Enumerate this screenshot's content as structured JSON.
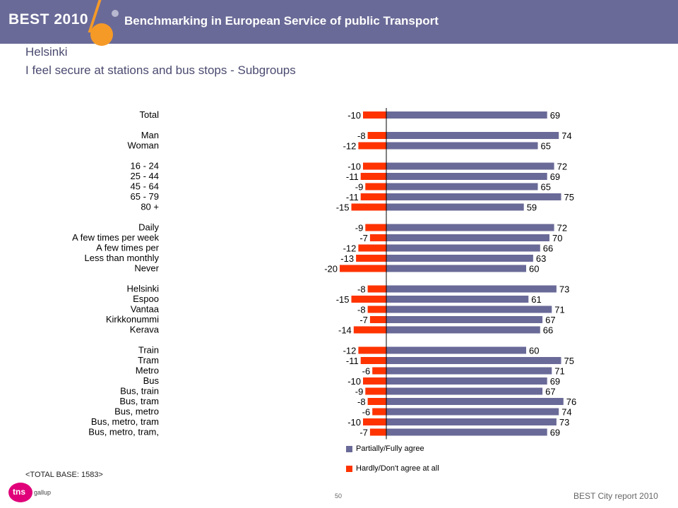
{
  "header": {
    "brand": "BEST 2010",
    "title": "Benchmarking in European Service of public Transport"
  },
  "city": "Helsinki",
  "subtitle": "I feel secure at stations and bus stops - Subgroups",
  "base_note": "<TOTAL BASE: 1583>",
  "footer": {
    "logo": "tns",
    "logo_sub": "gallup",
    "page_number": "50",
    "report": "BEST City report 2010"
  },
  "colors": {
    "agree": "#6a6a98",
    "disagree": "#ff3300"
  },
  "chart_data": {
    "type": "bar",
    "orientation": "horizontal-diverging",
    "series": [
      {
        "name": "Partially/Fully agree",
        "color": "#6a6a98"
      },
      {
        "name": "Hardly/Don't agree at all",
        "color": "#ff3300"
      }
    ],
    "groups": [
      {
        "rows": [
          {
            "label": "Total",
            "agree": 69,
            "disagree": -10
          }
        ]
      },
      {
        "rows": [
          {
            "label": "Man",
            "agree": 74,
            "disagree": -8
          },
          {
            "label": "Woman",
            "agree": 65,
            "disagree": -12
          }
        ]
      },
      {
        "rows": [
          {
            "label": "16 - 24",
            "agree": 72,
            "disagree": -10
          },
          {
            "label": "25 - 44",
            "agree": 69,
            "disagree": -11
          },
          {
            "label": "45 - 64",
            "agree": 65,
            "disagree": -9
          },
          {
            "label": "65 - 79",
            "agree": 75,
            "disagree": -11
          },
          {
            "label": "80 +",
            "agree": 59,
            "disagree": -15
          }
        ]
      },
      {
        "rows": [
          {
            "label": "Daily",
            "agree": 72,
            "disagree": -9
          },
          {
            "label": "A few times per week",
            "agree": 70,
            "disagree": -7
          },
          {
            "label": "A few times per",
            "agree": 66,
            "disagree": -12
          },
          {
            "label": "Less than monthly",
            "agree": 63,
            "disagree": -13
          },
          {
            "label": "Never",
            "agree": 60,
            "disagree": -20
          }
        ]
      },
      {
        "rows": [
          {
            "label": "Helsinki",
            "agree": 73,
            "disagree": -8
          },
          {
            "label": "Espoo",
            "agree": 61,
            "disagree": -15
          },
          {
            "label": "Vantaa",
            "agree": 71,
            "disagree": -8
          },
          {
            "label": "Kirkkonummi",
            "agree": 67,
            "disagree": -7
          },
          {
            "label": "Kerava",
            "agree": 66,
            "disagree": -14
          }
        ]
      },
      {
        "rows": [
          {
            "label": "Train",
            "agree": 60,
            "disagree": -12
          },
          {
            "label": "Tram",
            "agree": 75,
            "disagree": -11
          },
          {
            "label": "Metro",
            "agree": 71,
            "disagree": -6
          },
          {
            "label": "Bus",
            "agree": 69,
            "disagree": -10
          },
          {
            "label": "Bus, train",
            "agree": 67,
            "disagree": -9
          },
          {
            "label": "Bus, tram",
            "agree": 76,
            "disagree": -8
          },
          {
            "label": "Bus, metro",
            "agree": 74,
            "disagree": -6
          },
          {
            "label": "Bus, metro, tram",
            "agree": 73,
            "disagree": -10
          },
          {
            "label": "Bus, metro, tram,",
            "agree": 69,
            "disagree": -7
          }
        ]
      }
    ]
  }
}
